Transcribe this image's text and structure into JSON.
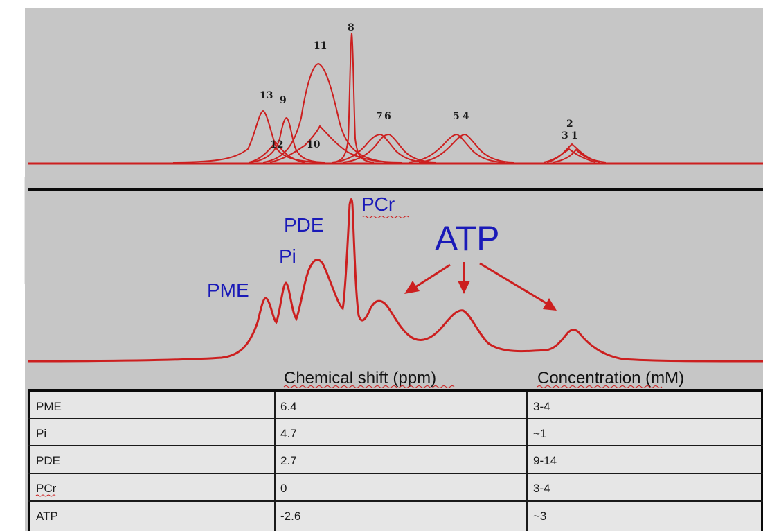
{
  "deconvolved_spectrum": {
    "peak_numbers": [
      "1",
      "2",
      "3",
      "4",
      "5",
      "6",
      "7",
      "8",
      "9",
      "10",
      "11",
      "12",
      "13"
    ]
  },
  "labeled_spectrum": {
    "labels": {
      "pme": "PME",
      "pi": "Pi",
      "pde": "PDE",
      "pcr": "PCr",
      "atp": "ATP"
    }
  },
  "table": {
    "headers": [
      "",
      "Chemical shift (ppm)",
      "Concentration (mM)"
    ],
    "rows": [
      [
        "PME",
        "6.4",
        "3-4"
      ],
      [
        "Pi",
        "4.7",
        "~1"
      ],
      [
        "PDE",
        "2.7",
        "9-14"
      ],
      [
        "PCr",
        "0",
        "3-4"
      ],
      [
        "ATP",
        "-2.6",
        "~3"
      ]
    ]
  },
  "colors": {
    "spectrum": "#cc1f1f",
    "label": "#1a1ab8",
    "panel": "#c6c6c6",
    "table_bg": "#e6e6e6"
  }
}
